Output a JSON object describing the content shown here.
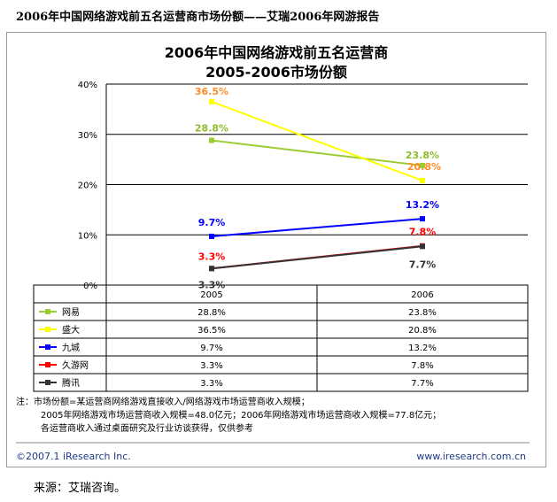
{
  "page": {
    "title": "2006年中国网络游戏前五名运营商市场份额——艾瑞2006年网游报告",
    "source": "来源：艾瑞咨询。"
  },
  "chart_data": {
    "type": "line",
    "title_line1": "2006年中国网络游戏前五名运营商",
    "title_line2": "2005-2006市场份额",
    "categories": [
      "2005",
      "2006"
    ],
    "ylim": [
      0,
      40
    ],
    "yticks": [
      "0%",
      "10%",
      "20%",
      "30%",
      "40%"
    ],
    "grid": true,
    "legend": "table-below",
    "series": [
      {
        "name": "网易",
        "values": [
          28.8,
          23.8
        ],
        "labels": [
          "28.8%",
          "23.8%"
        ],
        "color": "#9acd32"
      },
      {
        "name": "盛大",
        "values": [
          36.5,
          20.8
        ],
        "labels": [
          "36.5%",
          "20.8%"
        ],
        "color": "#ffff00"
      },
      {
        "name": "九城",
        "values": [
          9.7,
          13.2
        ],
        "labels": [
          "9.7%",
          "13.2%"
        ],
        "color": "#0000ff"
      },
      {
        "name": "久游网",
        "values": [
          3.3,
          7.8
        ],
        "labels": [
          "3.3%",
          "7.8%"
        ],
        "color": "#ff0000"
      },
      {
        "name": "腾讯",
        "values": [
          3.3,
          7.7
        ],
        "labels": [
          "3.3%",
          "7.7%"
        ],
        "color": "#333333"
      }
    ],
    "label_colors": {
      "网易": "#8fbc2f",
      "盛大": "#ff8c2a",
      "九城": "#0000ff",
      "久游网": "#ff0000",
      "腾讯": "#333333"
    }
  },
  "notes": {
    "line1": "注：市场份额=某运营商网络游戏直接收入/网络游戏市场运营商收入规模；",
    "line2": "2005年网络游戏市场运营商收入规模=48.0亿元；2006年网络游戏市场运营商收入规模=77.8亿元；",
    "line3": "各运营商收入通过桌面研究及行业访谈获得，仅供参考"
  },
  "footer": {
    "copyright": "©2007.1 iResearch Inc.",
    "url": "www.iresearch.com.cn"
  }
}
